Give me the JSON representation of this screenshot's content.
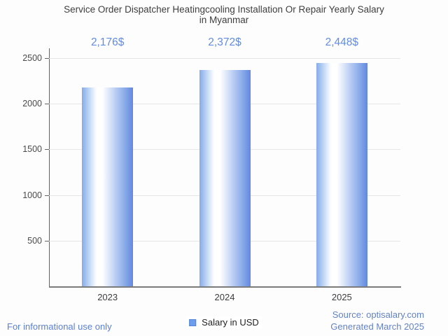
{
  "chart_data": {
    "type": "bar",
    "title": "Service Order Dispatcher Heatingcooling Installation Or Repair Yearly Salary in Myanmar",
    "title_lines": [
      "Service Order Dispatcher Heatingcooling Installation Or Repair Yearly Salary",
      "in Myanmar"
    ],
    "categories": [
      "2023",
      "2024",
      "2025"
    ],
    "series": [
      {
        "name": "Salary in USD",
        "values": [
          2176,
          2372,
          2448
        ]
      }
    ],
    "value_labels": [
      "2,176$",
      "2,372$",
      "2,448$"
    ],
    "y_ticks": [
      500,
      1000,
      1500,
      2000,
      2500
    ],
    "ylim": [
      0,
      2500
    ],
    "grid": true,
    "legend_position": "bottom",
    "legend_label": "Salary in USD"
  },
  "colors": {
    "bar_edge_blue": "#6288df",
    "bar_light_blue": "#aacff2",
    "value_label_blue": "#618be4",
    "legend_swatch_blue": "#6d9eeb",
    "footer_blue": "#5b80d4",
    "title_gray": "#3e3e3e",
    "axis_gray": "#626262",
    "gridline_gray": "#e6e6e6"
  },
  "icons": {
    "legend_swatch": "legend-swatch-square"
  },
  "footer": {
    "left_note": "For informational use only",
    "source": "Source: optisalary.com",
    "generated": "Generated March 2025"
  }
}
